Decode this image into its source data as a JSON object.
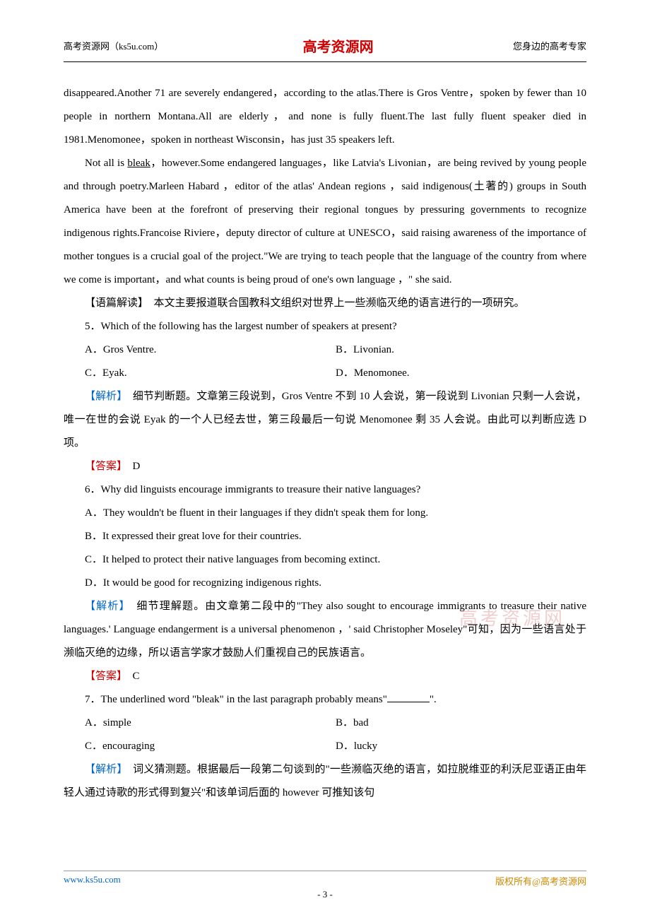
{
  "header": {
    "left": "高考资源网（ks5u.com）",
    "center": "高考资源网",
    "right": "您身边的高考专家"
  },
  "passage": {
    "p1": "disappeared.Another 71 are severely endangered，according to the atlas.There is Gros Ventre，spoken by fewer than 10 people in northern Montana.All are elderly，and none is fully fluent.The last fully fluent speaker died in 1981.Menomonee，spoken in northeast Wisconsin，has just 35 speakers left.",
    "p2a": "Not all is ",
    "p2_u": "bleak",
    "p2b": "，however.Some endangered languages，like Latvia's Livonian，are being revived by young people and through poetry.Marleen Habard ，editor of the atlas' Andean regions ，said indigenous(土著的) groups in South America have been at the forefront of preserving their regional tongues by pressuring governments to recognize indigenous rights.Francoise Riviere，deputy director of culture at UNESCO，said raising awareness of the importance of mother tongues is a crucial goal of the project.\"We are trying to teach people that the language of the country from where we come is important，and what counts is being proud of one's own language ，\" she said."
  },
  "reading_label": "【语篇解读】",
  "reading_text": "　本文主要报道联合国教科文组织对世界上一些濒临灭绝的语言进行的一项研究。",
  "q5": {
    "stem": "5．Which of the following has the largest number of speakers at present?",
    "a": "A．Gros Ventre.",
    "b": "B．Livonian.",
    "c": "C．Eyak.",
    "d": "D．Menomonee.",
    "analysis_label": "【解析】",
    "analysis": "　细节判断题。文章第三段说到，Gros Ventre 不到 10 人会说，第一段说到 Livonian 只剩一人会说，唯一在世的会说 Eyak 的一个人已经去世，第三段最后一句说 Menomonee 剩 35 人会说。由此可以判断应选 D 项。",
    "answer_label": "【答案】",
    "answer": "　D"
  },
  "q6": {
    "stem": "6．Why did linguists encourage immigrants to treasure their native languages?",
    "a": "A．They wouldn't be fluent in their languages if they didn't speak them for long.",
    "b": "B．It expressed their great love for their countries.",
    "c": "C．It helped to protect their native languages from becoming extinct.",
    "d": "D．It would be good for recognizing indigenous rights.",
    "analysis_label": "【解析】",
    "analysis": "　细节理解题。由文章第二段中的\"They also sought to encourage immigrants to treasure their native languages.' Language endangerment is a universal phenomenon ，' said Christopher Moseley\"可知，因为一些语言处于濒临灭绝的边缘，所以语言学家才鼓励人们重视自己的民族语言。",
    "answer_label": "【答案】",
    "answer": "　C"
  },
  "q7": {
    "stem_a": "7．The underlined word \"bleak\" in the last paragraph probably means\"",
    "stem_b": "\".",
    "a": "A．simple",
    "b": "B．bad",
    "c": "C．encouraging",
    "d": "D．lucky",
    "analysis_label": "【解析】",
    "analysis": "　词义猜测题。根据最后一段第二句谈到的\"一些濒临灭绝的语言，如拉脱维亚的利沃尼亚语正由年轻人通过诗歌的形式得到复兴\"和该单词后面的 however 可推知该句"
  },
  "watermark": "高考资源网",
  "footer": {
    "left": "www.ks5u.com",
    "right": "版权所有@高考资源网",
    "page": "- 3 -"
  }
}
